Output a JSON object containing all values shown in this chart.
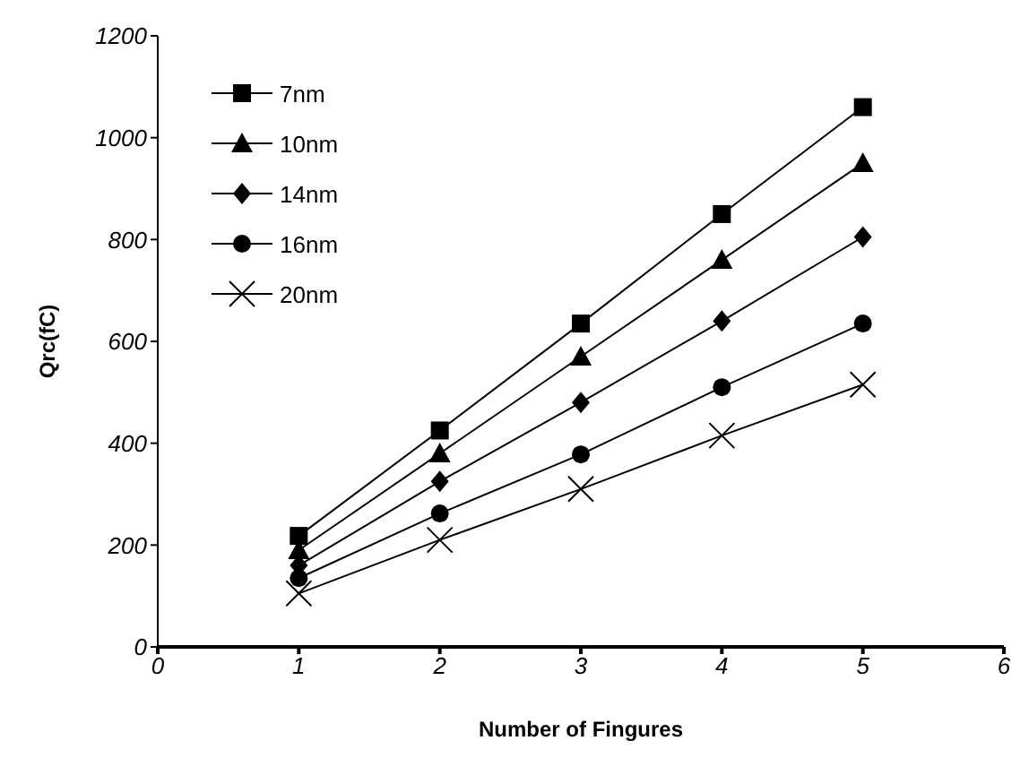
{
  "chart_data": {
    "type": "line",
    "xlabel": "Number of Fingures",
    "ylabel": "Qrc(fC)",
    "x": [
      1,
      2,
      3,
      4,
      5
    ],
    "xlim": [
      0,
      6
    ],
    "xticks": [
      0,
      1,
      2,
      3,
      4,
      5,
      6
    ],
    "ylim": [
      0,
      1200
    ],
    "yticks": [
      0,
      200,
      400,
      600,
      800,
      1000,
      1200
    ],
    "grid": false,
    "legend": "top left",
    "line_style": "solid",
    "series": [
      {
        "name": "7nm",
        "color": "#000000",
        "marker": "square",
        "values": [
          218,
          425,
          635,
          850,
          1060
        ]
      },
      {
        "name": "10nm",
        "color": "#000000",
        "marker": "triangle",
        "values": [
          190,
          380,
          570,
          760,
          950
        ]
      },
      {
        "name": "14nm",
        "color": "#000000",
        "marker": "diamond",
        "values": [
          160,
          325,
          480,
          640,
          805
        ]
      },
      {
        "name": "16nm",
        "color": "#000000",
        "marker": "circle",
        "values": [
          135,
          262,
          378,
          510,
          635
        ]
      },
      {
        "name": "20nm",
        "color": "#000000",
        "marker": "cross",
        "values": [
          105,
          210,
          310,
          415,
          515
        ]
      }
    ]
  }
}
